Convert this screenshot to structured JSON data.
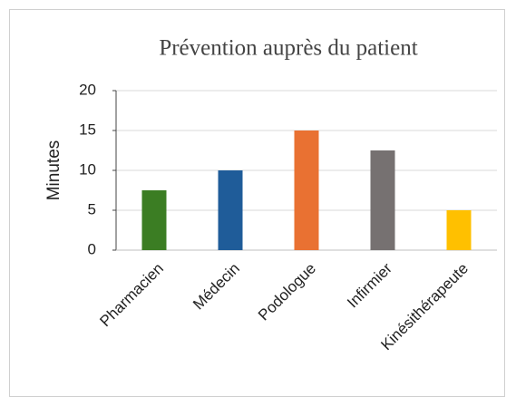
{
  "chart_data": {
    "type": "bar",
    "title": "Prévention auprès du patient",
    "y_label": "Minutes",
    "categories": [
      "Pharmacien",
      "Médecin",
      "Podologue",
      "Infirmier",
      "Kinésithérapeute"
    ],
    "values": [
      7.5,
      10,
      15,
      12.5,
      5
    ],
    "colors": [
      "#3b7d23",
      "#1f5c99",
      "#e97132",
      "#767171",
      "#ffc000"
    ],
    "ylim": [
      0,
      20
    ],
    "yticks": [
      0,
      5,
      10,
      15,
      20
    ],
    "grid": true
  }
}
